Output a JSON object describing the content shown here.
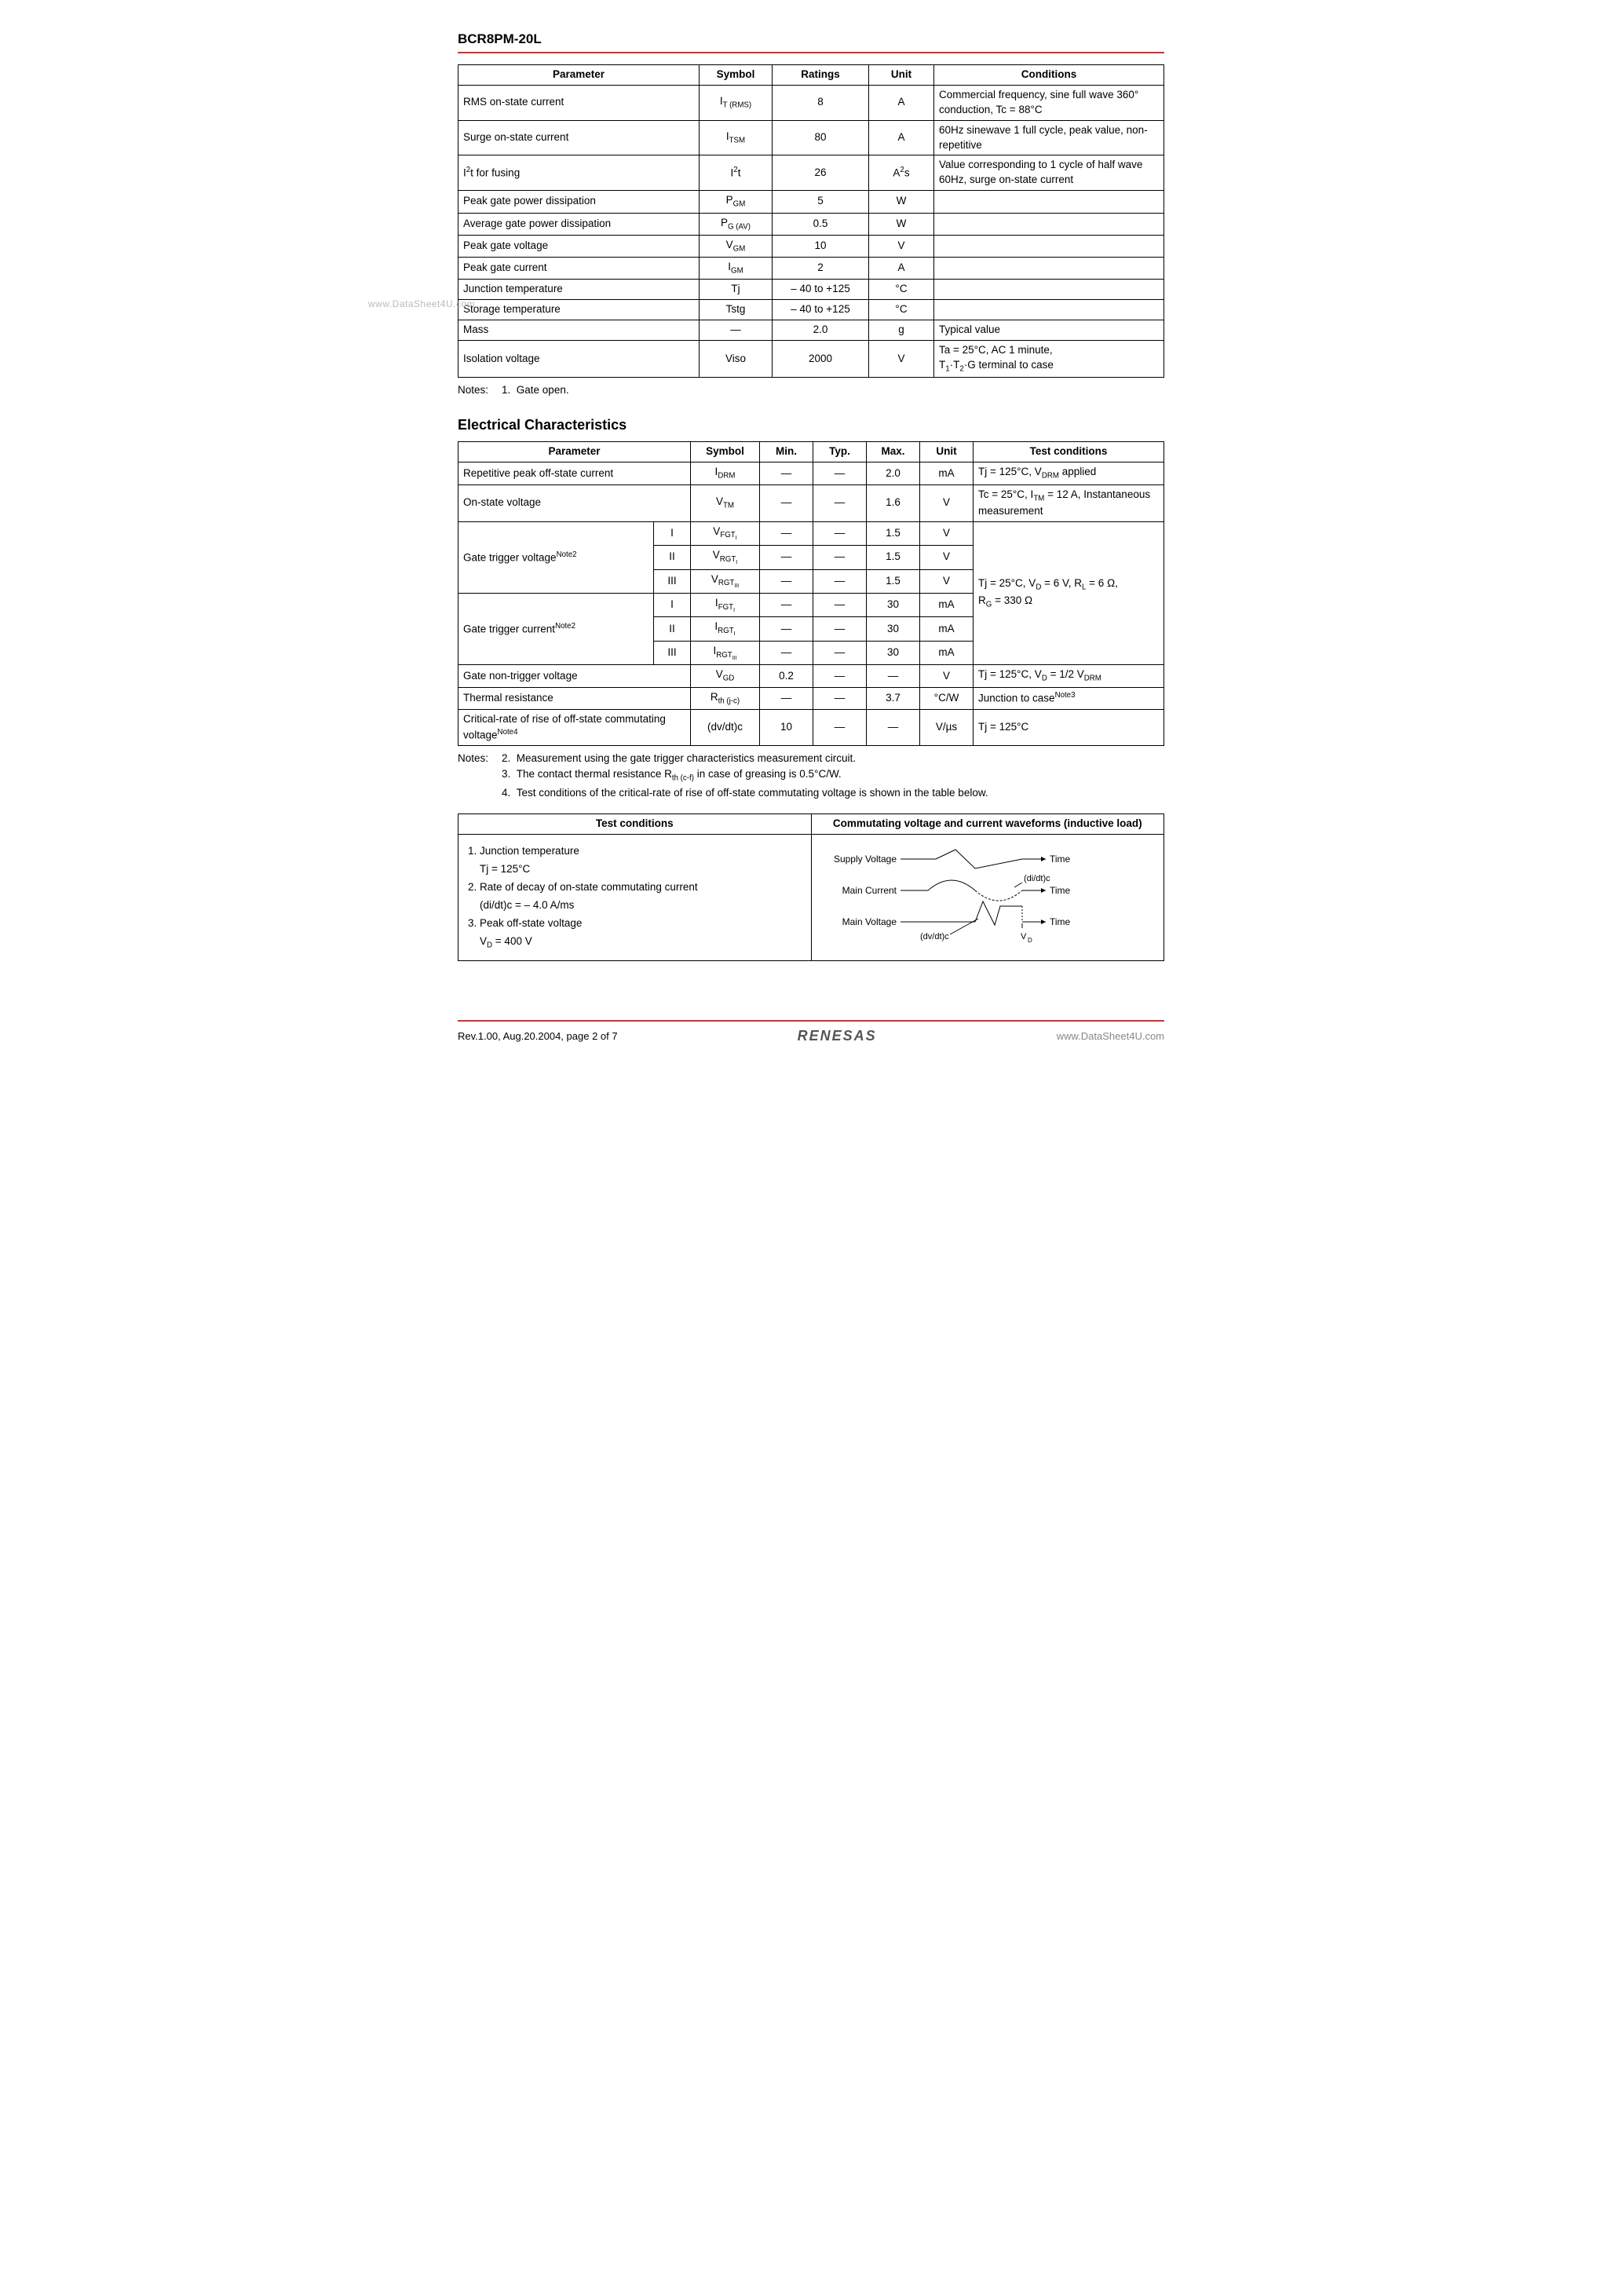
{
  "header": {
    "part_number": "BCR8PM-20L"
  },
  "watermark": "www.DataSheet4U.com",
  "table1": {
    "headers": [
      "Parameter",
      "Symbol",
      "Ratings",
      "Unit",
      "Conditions"
    ],
    "rows": [
      {
        "param": "RMS on-state current",
        "sym_html": "I<sub>T (RMS)</sub>",
        "rating": "8",
        "unit": "A",
        "cond": "Commercial frequency, sine full wave 360° conduction, Tc = 88°C"
      },
      {
        "param": "Surge on-state current",
        "sym_html": "I<sub>TSM</sub>",
        "rating": "80",
        "unit": "A",
        "cond": "60Hz sinewave 1 full cycle, peak value, non-repetitive"
      },
      {
        "param_html": "I<sup>2</sup>t for fusing",
        "sym_html": "I<sup>2</sup>t",
        "rating": "26",
        "unit_html": "A<sup>2</sup>s",
        "cond": "Value corresponding to 1 cycle of half wave 60Hz, surge on-state current"
      },
      {
        "param": "Peak gate power dissipation",
        "sym_html": "P<sub>GM</sub>",
        "rating": "5",
        "unit": "W",
        "cond": ""
      },
      {
        "param": "Average gate power dissipation",
        "sym_html": "P<sub>G (AV)</sub>",
        "rating": "0.5",
        "unit": "W",
        "cond": ""
      },
      {
        "param": "Peak gate voltage",
        "sym_html": "V<sub>GM</sub>",
        "rating": "10",
        "unit": "V",
        "cond": ""
      },
      {
        "param": "Peak gate current",
        "sym_html": "I<sub>GM</sub>",
        "rating": "2",
        "unit": "A",
        "cond": ""
      },
      {
        "param": "Junction temperature",
        "sym": "Tj",
        "rating": "– 40 to +125",
        "unit": "°C",
        "cond": ""
      },
      {
        "param": "Storage temperature",
        "sym": "Tstg",
        "rating": "– 40 to +125",
        "unit": "°C",
        "cond": ""
      },
      {
        "param": "Mass",
        "sym": "—",
        "rating": "2.0",
        "unit": "g",
        "cond": "Typical value"
      },
      {
        "param": "Isolation voltage",
        "sym": "Viso",
        "rating": "2000",
        "unit": "V",
        "cond_html": "Ta = 25°C, AC 1 minute,<br>T<sub>1</sub>·T<sub>2</sub>·G terminal to case"
      }
    ],
    "notes_label": "Notes:",
    "note1_num": "1.",
    "note1_text": "Gate open."
  },
  "section2_heading": "Electrical Characteristics",
  "table2": {
    "headers": [
      "Parameter",
      "Symbol",
      "Min.",
      "Typ.",
      "Max.",
      "Unit",
      "Test conditions"
    ],
    "row_repetitive": {
      "param": "Repetitive peak off-state current",
      "sym_html": "I<sub>DRM</sub>",
      "min": "—",
      "typ": "—",
      "max": "2.0",
      "unit": "mA",
      "cond_html": "Tj = 125°C, V<sub>DRM</sub> applied"
    },
    "row_onstate": {
      "param": "On-state voltage",
      "sym_html": "V<sub>TM</sub>",
      "min": "—",
      "typ": "—",
      "max": "1.6",
      "unit": "V",
      "cond_html": "Tc = 25°C, I<sub>TM</sub> = 12 A, Instantaneous measurement"
    },
    "gate_trigger_voltage_label_html": "Gate trigger voltage<sup>Note2</sup>",
    "gtv_rows": [
      {
        "mode": "I",
        "sym_html": "V<sub>FGT<sub>I</sub></sub>",
        "min": "—",
        "typ": "—",
        "max": "1.5",
        "unit": "V"
      },
      {
        "mode": "II",
        "sym_html": "V<sub>RGT<sub>I</sub></sub>",
        "min": "—",
        "typ": "—",
        "max": "1.5",
        "unit": "V"
      },
      {
        "mode": "III",
        "sym_html": "V<sub>RGT<sub>III</sub></sub>",
        "min": "—",
        "typ": "—",
        "max": "1.5",
        "unit": "V"
      }
    ],
    "gate_trigger_current_label_html": "Gate trigger current<sup>Note2</sup>",
    "gtc_rows": [
      {
        "mode": "I",
        "sym_html": "I<sub>FGT<sub>I</sub></sub>",
        "min": "—",
        "typ": "—",
        "max": "30",
        "unit": "mA"
      },
      {
        "mode": "II",
        "sym_html": "I<sub>RGT<sub>I</sub></sub>",
        "min": "—",
        "typ": "—",
        "max": "30",
        "unit": "mA"
      },
      {
        "mode": "III",
        "sym_html": "I<sub>RGT<sub>III</sub></sub>",
        "min": "—",
        "typ": "—",
        "max": "30",
        "unit": "mA"
      }
    ],
    "gt_cond_html": "Tj = 25°C, V<sub>D</sub> = 6 V, R<sub>L</sub> = 6 Ω,<br>R<sub>G</sub> = 330 Ω",
    "row_nontrigger": {
      "param": "Gate non-trigger voltage",
      "sym_html": "V<sub>GD</sub>",
      "min": "0.2",
      "typ": "—",
      "max": "—",
      "unit": "V",
      "cond_html": "Tj = 125°C, V<sub>D</sub> = 1/2 V<sub>DRM</sub>"
    },
    "row_thermal": {
      "param": "Thermal resistance",
      "sym_html": "R<sub>th (j-c)</sub>",
      "min": "—",
      "typ": "—",
      "max": "3.7",
      "unit": "°C/W",
      "cond_html": "Junction to case<sup>Note3</sup>"
    },
    "row_critical": {
      "param_html": "Critical-rate of rise of off-state commutating voltage<sup>Note4</sup>",
      "sym": "(dv/dt)c",
      "min": "10",
      "typ": "—",
      "max": "—",
      "unit": "V/µs",
      "cond": "Tj = 125°C"
    },
    "notes_label": "Notes:",
    "note2_num": "2.",
    "note2_text": "Measurement using the gate trigger characteristics measurement circuit.",
    "note3_num": "3.",
    "note3_html": "The contact thermal resistance R<sub>th (c-f)</sub> in case of greasing is 0.5°C/W.",
    "note4_num": "4.",
    "note4_text": "Test conditions of the critical-rate of rise of off-state commutating voltage is shown in the table below."
  },
  "table3": {
    "header_left": "Test conditions",
    "header_right": "Commutating voltage and current waveforms (inductive load)",
    "items": [
      "1. Junction temperature",
      "    Tj = 125°C",
      "2. Rate of decay of on-state commutating current",
      "    (di/dt)c = – 4.0 A/ms",
      "3. Peak off-state voltage",
      "    V<sub>D</sub> = 400 V"
    ],
    "diagram": {
      "supply_label": "Supply Voltage",
      "time": "Time",
      "main_current": "Main Current",
      "didt": "(di/dt)c",
      "main_voltage": "Main Voltage",
      "dvdt": "(dv/dt)c",
      "vd": "V<sub>D</sub>"
    }
  },
  "footer": {
    "rev": "Rev.1.00,  Aug.20.2004,  page 2 of 7",
    "logo": "RENESAS",
    "link": "www.DataSheet4U.com"
  }
}
